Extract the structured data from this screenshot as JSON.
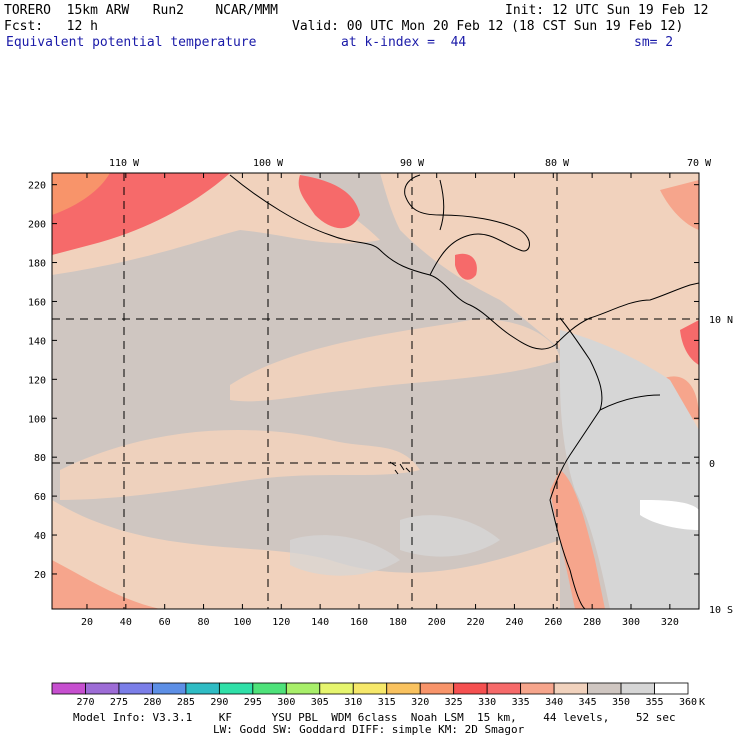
{
  "header": {
    "model": "TORERO  15km ARW   Run2    NCAR/MMM",
    "init": "Init: 12 UTC Sun 19 Feb 12",
    "fcst": "Fcst:   12 h",
    "valid": "Valid: 00 UTC Mon 20 Feb 12 (18 CST Sun 19 Feb 12)",
    "field": "Equivalent potential temperature",
    "level": "at k-index =  44",
    "smooth": "sm= 2"
  },
  "axes": {
    "x_ticks": [
      "20",
      "40",
      "60",
      "80",
      "100",
      "120",
      "140",
      "160",
      "180",
      "200",
      "220",
      "240",
      "260",
      "280",
      "300",
      "320"
    ],
    "y_ticks": [
      "20",
      "40",
      "60",
      "80",
      "100",
      "120",
      "140",
      "160",
      "180",
      "200",
      "220"
    ],
    "lon_labels": [
      "110 W",
      "100 W",
      "90 W",
      "80 W",
      "70 W"
    ],
    "lat_labels": [
      "10 N",
      "0",
      "10 S"
    ]
  },
  "legend": {
    "values": [
      "270",
      "275",
      "280",
      "285",
      "290",
      "295",
      "300",
      "305",
      "310",
      "315",
      "320",
      "325",
      "330",
      "335",
      "340",
      "345",
      "350",
      "355",
      "360"
    ],
    "unit": "K",
    "colors": [
      "#c64fcf",
      "#9d6cd6",
      "#7b7ee8",
      "#5d8fe6",
      "#2fbcc4",
      "#2fe0a8",
      "#4ee27a",
      "#a8ef6a",
      "#e6f56e",
      "#f6e86a",
      "#f9c25f",
      "#f8946a",
      "#f55050",
      "#f66a6a",
      "#f6a58c",
      "#f1d2bd",
      "#cfc6c1",
      "#d6d6d6",
      "#ffffff"
    ]
  },
  "footer": {
    "line1": "Model Info: V3.3.1    KF      YSU PBL  WDM 6class  Noah LSM  15 km,    44 levels,    52 sec",
    "line2": "LW: Godd SW: Goddard DIFF: simple KM: 2D Smagor"
  }
}
